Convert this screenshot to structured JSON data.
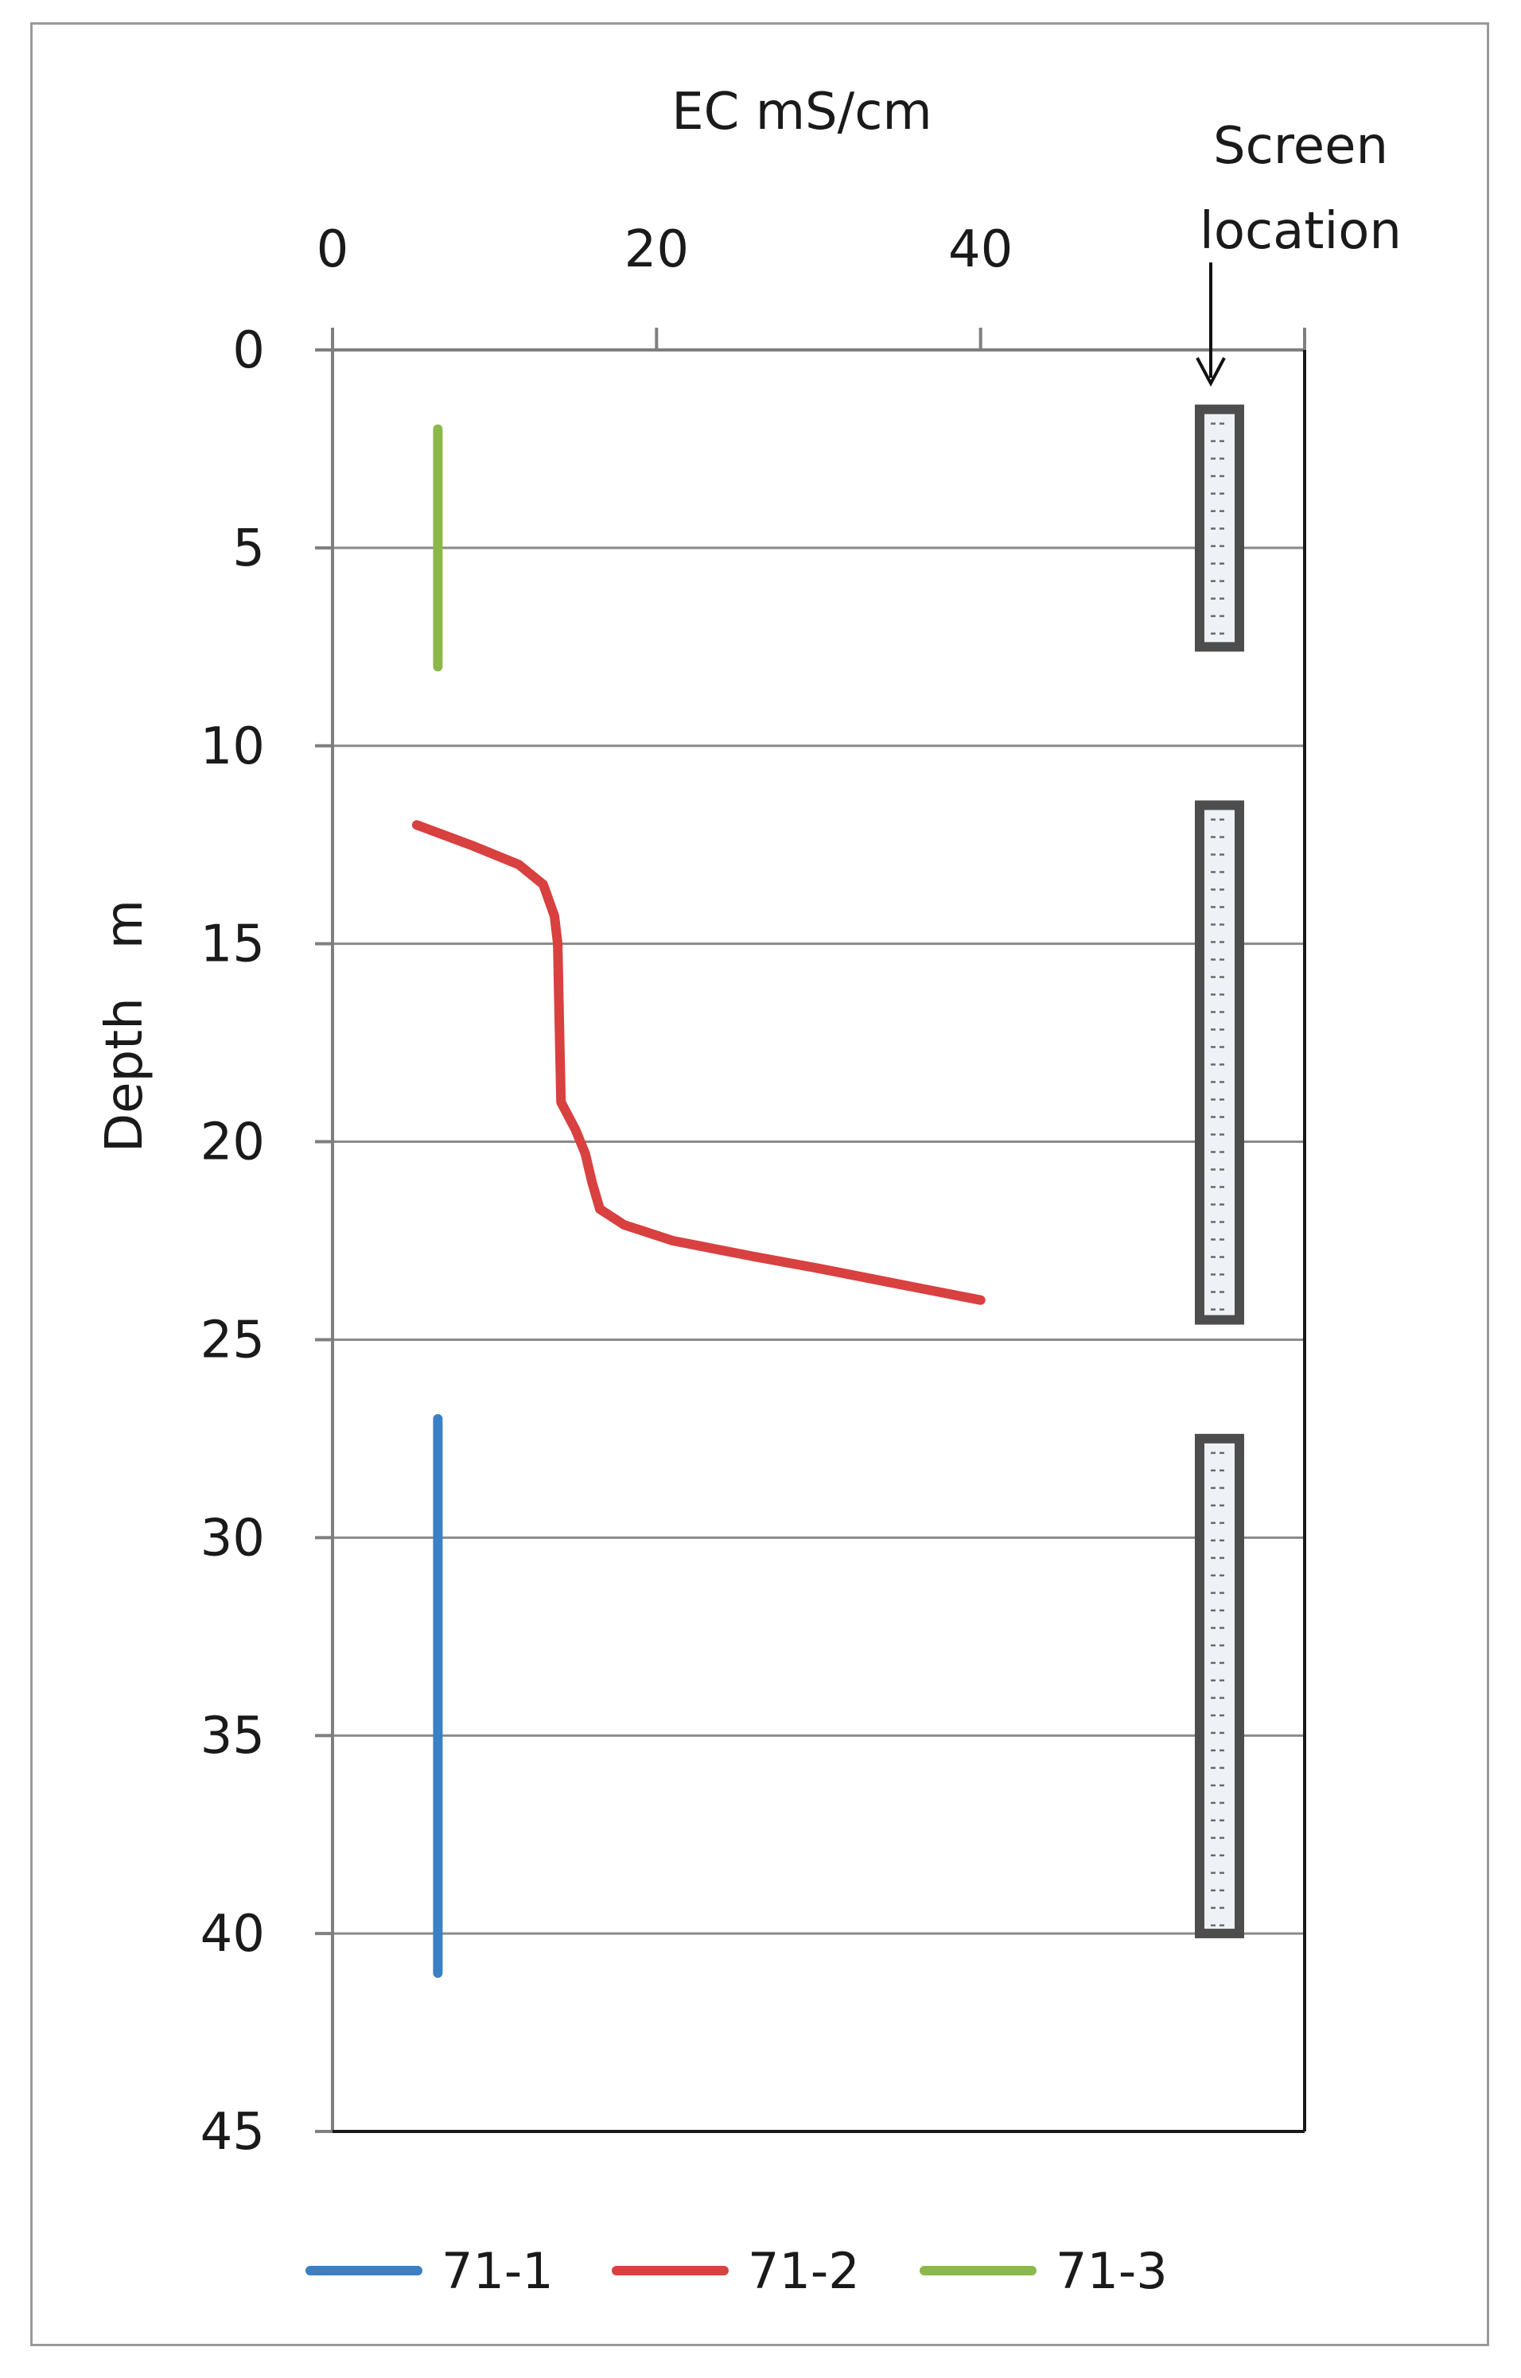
{
  "chart_data": {
    "type": "line",
    "xlabel": "EC mS/cm",
    "ylabel": "Depth   m",
    "xlim": [
      0,
      60
    ],
    "ylim": [
      0,
      45
    ],
    "x_axis_position": "top",
    "y_axis_inverted": true,
    "x_ticks": [
      0,
      20,
      40
    ],
    "y_ticks": [
      0,
      5,
      10,
      15,
      20,
      25,
      30,
      35,
      40,
      45
    ],
    "grid": "horizontal",
    "legend_position": "bottom",
    "series": [
      {
        "name": "71-1",
        "color": "#3b7fc4",
        "points": [
          [
            6.5,
            27
          ],
          [
            6.5,
            41
          ]
        ]
      },
      {
        "name": "71-2",
        "color": "#d94040",
        "points": [
          [
            5.2,
            12
          ],
          [
            8.5,
            12.5
          ],
          [
            11.5,
            13
          ],
          [
            13.0,
            13.5
          ],
          [
            13.7,
            14.3
          ],
          [
            13.9,
            15
          ],
          [
            14.0,
            17
          ],
          [
            14.1,
            19
          ],
          [
            15.0,
            19.7
          ],
          [
            15.6,
            20.3
          ],
          [
            16.0,
            21
          ],
          [
            16.5,
            21.7
          ],
          [
            18.0,
            22.1
          ],
          [
            21.0,
            22.5
          ],
          [
            26.0,
            22.9
          ],
          [
            30.0,
            23.2
          ],
          [
            35.0,
            23.6
          ],
          [
            40.0,
            24
          ]
        ]
      },
      {
        "name": "71-3",
        "color": "#8cb84a",
        "points": [
          [
            6.5,
            2
          ],
          [
            6.5,
            8
          ]
        ]
      }
    ],
    "annotation": {
      "text_line1": "Screen",
      "text_line2": "location"
    },
    "screens": [
      {
        "top": 1.5,
        "bottom": 7.5
      },
      {
        "top": 11.5,
        "bottom": 24.5
      },
      {
        "top": 27.5,
        "bottom": 40
      }
    ]
  }
}
